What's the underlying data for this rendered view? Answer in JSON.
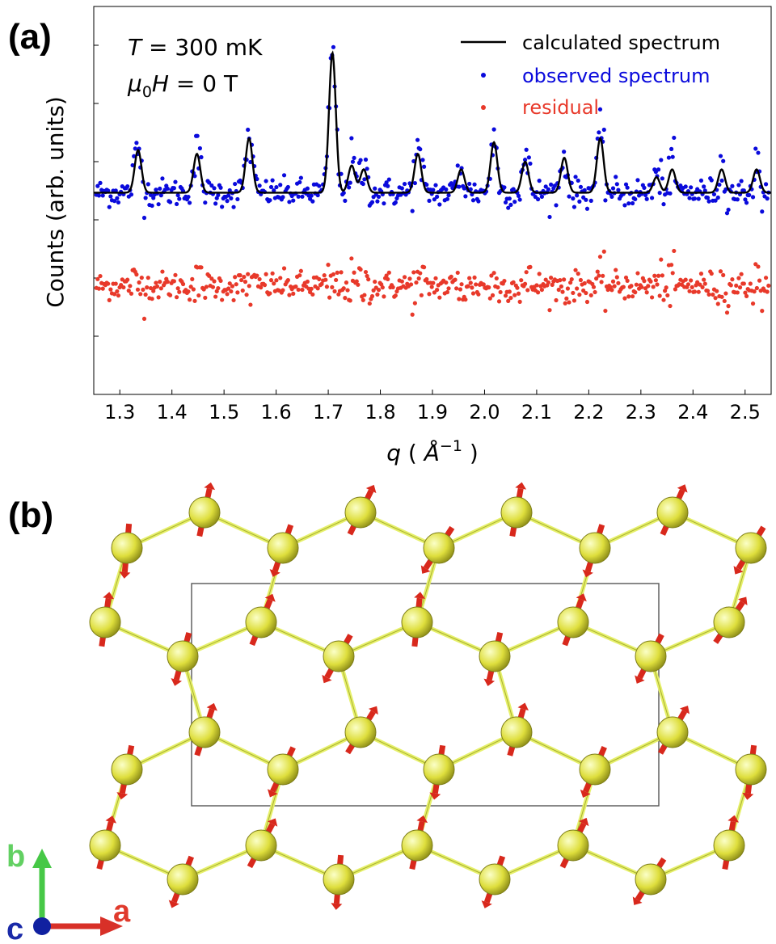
{
  "panel_a": {
    "label": "(a)",
    "annotation_T": {
      "sym": "T",
      "rest": " = 300 mK"
    },
    "annotation_H": {
      "sym": "μ",
      "sub": "0",
      "h": "H",
      "rest": " = 0 T"
    }
  },
  "panel_b": {
    "label": "(b)",
    "axes": {
      "b": "b",
      "a": "a",
      "c": "c"
    },
    "colors": {
      "atom": "#dede3c",
      "bond": "#e6f06a",
      "spin": "#d8281c",
      "cell": "#606060"
    }
  },
  "chart_data": {
    "type": "scatter",
    "ylabel": "Counts (arb. units)",
    "xlabel": {
      "sym": "q",
      "unit": "Å",
      "exp": "−1"
    },
    "xlim": [
      1.25,
      2.55
    ],
    "ylim": [
      0,
      1
    ],
    "x_ticks": [
      1.3,
      1.4,
      1.5,
      1.6,
      1.7,
      1.8,
      1.9,
      2.0,
      2.1,
      2.2,
      2.3,
      2.4,
      2.5
    ],
    "x_tick_labels": [
      "1.3",
      "1.4",
      "1.5",
      "1.6",
      "1.7",
      "1.8",
      "1.9",
      "2.0",
      "2.1",
      "2.2",
      "2.3",
      "2.4",
      "2.5"
    ],
    "y_ticks": [
      0.15,
      0.3,
      0.45,
      0.6,
      0.75,
      0.9
    ],
    "legend": [
      {
        "name": "calculated spectrum",
        "kind": "line",
        "color": "#000000"
      },
      {
        "name": "observed spectrum",
        "kind": "marker",
        "color": "#0a0adc"
      },
      {
        "name": "residual",
        "kind": "marker",
        "color": "#e8392a"
      }
    ],
    "series": {
      "baseline": 0.52,
      "residual_offset": 0.28,
      "peak_width": 0.0065,
      "peaks": [
        {
          "q": 1.335,
          "h": 0.11
        },
        {
          "q": 1.448,
          "h": 0.1
        },
        {
          "q": 1.548,
          "h": 0.14
        },
        {
          "q": 1.708,
          "h": 0.36
        },
        {
          "q": 1.745,
          "h": 0.07
        },
        {
          "q": 1.768,
          "h": 0.06
        },
        {
          "q": 1.872,
          "h": 0.1
        },
        {
          "q": 1.955,
          "h": 0.06
        },
        {
          "q": 2.018,
          "h": 0.13
        },
        {
          "q": 2.078,
          "h": 0.08
        },
        {
          "q": 2.153,
          "h": 0.09
        },
        {
          "q": 2.222,
          "h": 0.14
        },
        {
          "q": 2.33,
          "h": 0.04
        },
        {
          "q": 2.36,
          "h": 0.06
        },
        {
          "q": 2.455,
          "h": 0.06
        },
        {
          "q": 2.522,
          "h": 0.06
        }
      ],
      "noise": 0.018,
      "n_points": 520
    }
  }
}
